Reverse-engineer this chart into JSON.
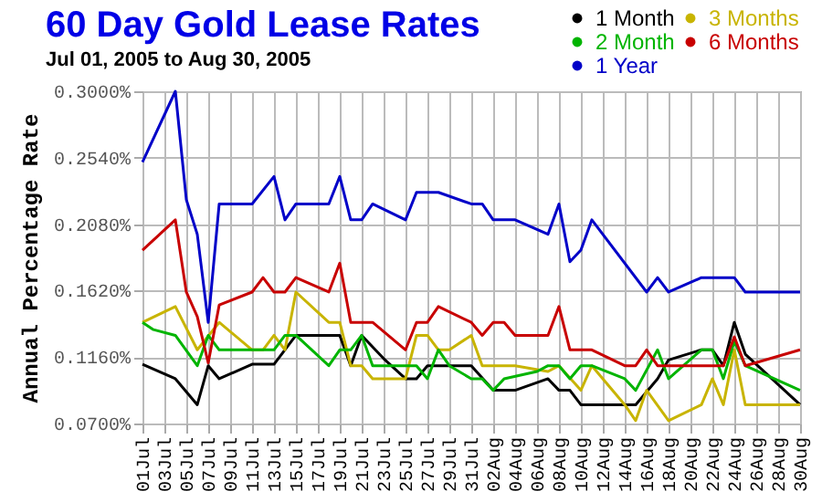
{
  "chart_data": {
    "type": "line",
    "title": "60 Day Gold Lease Rates",
    "subtitle": "Jul 01, 2005 to Aug 30, 2005",
    "ylabel": "Annual Percentage Rate",
    "xlim": [
      "--07-01",
      "--08-30"
    ],
    "xticks": [
      {
        "value": "--07-01",
        "label": "01Jul"
      },
      {
        "value": "--07-03",
        "label": "03Jul"
      },
      {
        "value": "--07-05",
        "label": "05Jul"
      },
      {
        "value": "--07-07",
        "label": "07Jul"
      },
      {
        "value": "--07-09",
        "label": "09Jul"
      },
      {
        "value": "--07-11",
        "label": "11Jul"
      },
      {
        "value": "--07-13",
        "label": "13Jul"
      },
      {
        "value": "--07-15",
        "label": "15Jul"
      },
      {
        "value": "--07-17",
        "label": "17Jul"
      },
      {
        "value": "--07-19",
        "label": "19Jul"
      },
      {
        "value": "--07-21",
        "label": "21Jul"
      },
      {
        "value": "--07-23",
        "label": "23Jul"
      },
      {
        "value": "--07-25",
        "label": "25Jul"
      },
      {
        "value": "--07-27",
        "label": "27Jul"
      },
      {
        "value": "--07-29",
        "label": "29Jul"
      },
      {
        "value": "--07-31",
        "label": "31Jul"
      },
      {
        "value": "--08-02",
        "label": "02Aug"
      },
      {
        "value": "--08-04",
        "label": "04Aug"
      },
      {
        "value": "--08-06",
        "label": "06Aug"
      },
      {
        "value": "--08-08",
        "label": "08Aug"
      },
      {
        "value": "--08-10",
        "label": "10Aug"
      },
      {
        "value": "--08-12",
        "label": "12Aug"
      },
      {
        "value": "--08-14",
        "label": "14Aug"
      },
      {
        "value": "--08-16",
        "label": "16Aug"
      },
      {
        "value": "--08-18",
        "label": "18Aug"
      },
      {
        "value": "--08-20",
        "label": "20Aug"
      },
      {
        "value": "--08-22",
        "label": "22Aug"
      },
      {
        "value": "--08-24",
        "label": "24Aug"
      },
      {
        "value": "--08-26",
        "label": "26Aug"
      },
      {
        "value": "--08-28",
        "label": "28Aug"
      },
      {
        "value": "--08-30",
        "label": "30Aug"
      }
    ],
    "ylim": [
      0.07,
      0.3
    ],
    "yticks": [
      {
        "value": 0.07,
        "label": "0.0700%"
      },
      {
        "value": 0.116,
        "label": "0.1160%"
      },
      {
        "value": 0.162,
        "label": "0.1620%"
      },
      {
        "value": 0.208,
        "label": "0.2080%"
      },
      {
        "value": 0.254,
        "label": "0.2540%"
      },
      {
        "value": 0.3,
        "label": "0.3000%"
      }
    ],
    "grid": true,
    "legend": "top right",
    "series": [
      {
        "name": "1 Month",
        "color": "#000000",
        "x": [
          "--07-01",
          "--07-04",
          "--07-06",
          "--07-07",
          "--07-08",
          "--07-11",
          "--07-13",
          "--07-15",
          "--07-19",
          "--07-20",
          "--07-21",
          "--07-23",
          "--07-25",
          "--07-26",
          "--07-27",
          "--07-31",
          "--08-02",
          "--08-04",
          "--08-07",
          "--08-08",
          "--08-09",
          "--08-10",
          "--08-15",
          "--08-17",
          "--08-18",
          "--08-21",
          "--08-22",
          "--08-23",
          "--08-24",
          "--08-25",
          "--08-30"
        ],
        "values": [
          0.111,
          0.101,
          0.083,
          0.11,
          0.101,
          0.111,
          0.111,
          0.131,
          0.131,
          0.11,
          0.131,
          0.115,
          0.101,
          0.101,
          0.11,
          0.11,
          0.093,
          0.093,
          0.101,
          0.093,
          0.093,
          0.083,
          0.083,
          0.101,
          0.114,
          0.121,
          0.121,
          0.11,
          0.14,
          0.118,
          0.083
        ]
      },
      {
        "name": "3 Months",
        "color": "#c8b400",
        "x": [
          "--07-01",
          "--07-04",
          "--07-06",
          "--07-08",
          "--07-11",
          "--07-12",
          "--07-13",
          "--07-14",
          "--07-15",
          "--07-18",
          "--07-19",
          "--07-20",
          "--07-21",
          "--07-22",
          "--07-25",
          "--07-26",
          "--07-27",
          "--07-28",
          "--07-29",
          "--07-31",
          "--08-01",
          "--08-04",
          "--08-07",
          "--08-08",
          "--08-10",
          "--08-11",
          "--08-14",
          "--08-15",
          "--08-16",
          "--08-18",
          "--08-21",
          "--08-22",
          "--08-23",
          "--08-24",
          "--08-25",
          "--08-30"
        ],
        "values": [
          0.14,
          0.151,
          0.121,
          0.14,
          0.121,
          0.121,
          0.131,
          0.121,
          0.161,
          0.14,
          0.14,
          0.11,
          0.11,
          0.101,
          0.101,
          0.131,
          0.131,
          0.121,
          0.121,
          0.131,
          0.11,
          0.11,
          0.106,
          0.11,
          0.093,
          0.11,
          0.083,
          0.072,
          0.093,
          0.072,
          0.083,
          0.101,
          0.083,
          0.121,
          0.083,
          0.083
        ]
      },
      {
        "name": "2 Month",
        "color": "#00b400",
        "x": [
          "--07-01",
          "--07-02",
          "--07-04",
          "--07-06",
          "--07-07",
          "--07-08",
          "--07-13",
          "--07-14",
          "--07-15",
          "--07-18",
          "--07-19",
          "--07-20",
          "--07-21",
          "--07-22",
          "--07-26",
          "--07-27",
          "--07-28",
          "--07-29",
          "--07-31",
          "--08-01",
          "--08-02",
          "--08-03",
          "--08-06",
          "--08-07",
          "--08-08",
          "--08-09",
          "--08-10",
          "--08-11",
          "--08-14",
          "--08-15",
          "--08-17",
          "--08-18",
          "--08-21",
          "--08-22",
          "--08-23",
          "--08-24",
          "--08-25",
          "--08-30"
        ],
        "values": [
          0.14,
          0.135,
          0.131,
          0.11,
          0.131,
          0.121,
          0.121,
          0.131,
          0.131,
          0.11,
          0.121,
          0.121,
          0.131,
          0.11,
          0.11,
          0.101,
          0.121,
          0.11,
          0.101,
          0.101,
          0.093,
          0.101,
          0.106,
          0.11,
          0.11,
          0.101,
          0.11,
          0.11,
          0.101,
          0.093,
          0.121,
          0.101,
          0.121,
          0.121,
          0.101,
          0.127,
          0.11,
          0.093
        ]
      },
      {
        "name": "6 Months",
        "color": "#c80000",
        "x": [
          "--07-01",
          "--07-04",
          "--07-05",
          "--07-06",
          "--07-07",
          "--07-08",
          "--07-11",
          "--07-12",
          "--07-13",
          "--07-14",
          "--07-15",
          "--07-18",
          "--07-19",
          "--07-20",
          "--07-22",
          "--07-25",
          "--07-26",
          "--07-27",
          "--07-28",
          "--07-31",
          "--08-01",
          "--08-02",
          "--08-03",
          "--08-04",
          "--08-07",
          "--08-08",
          "--08-09",
          "--08-11",
          "--08-14",
          "--08-15",
          "--08-16",
          "--08-17",
          "--08-23",
          "--08-24",
          "--08-25",
          "--08-30"
        ],
        "values": [
          0.19,
          0.211,
          0.161,
          0.144,
          0.112,
          0.152,
          0.161,
          0.171,
          0.161,
          0.161,
          0.171,
          0.161,
          0.181,
          0.14,
          0.14,
          0.121,
          0.14,
          0.14,
          0.151,
          0.14,
          0.131,
          0.14,
          0.14,
          0.131,
          0.131,
          0.151,
          0.121,
          0.121,
          0.11,
          0.11,
          0.121,
          0.11,
          0.11,
          0.13,
          0.11,
          0.121
        ]
      },
      {
        "name": "1 Year",
        "color": "#0000c8",
        "x": [
          "--07-01",
          "--07-04",
          "--07-05",
          "--07-06",
          "--07-07",
          "--07-08",
          "--07-11",
          "--07-13",
          "--07-14",
          "--07-15",
          "--07-18",
          "--07-19",
          "--07-20",
          "--07-21",
          "--07-22",
          "--07-25",
          "--07-26",
          "--07-28",
          "--07-31",
          "--08-01",
          "--08-02",
          "--08-04",
          "--08-07",
          "--08-08",
          "--08-09",
          "--08-10",
          "--08-11",
          "--08-16",
          "--08-17",
          "--08-18",
          "--08-21",
          "--08-24",
          "--08-25",
          "--08-30"
        ],
        "values": [
          0.251,
          0.3,
          0.225,
          0.201,
          0.14,
          0.222,
          0.222,
          0.241,
          0.211,
          0.222,
          0.222,
          0.241,
          0.211,
          0.211,
          0.222,
          0.211,
          0.23,
          0.23,
          0.222,
          0.222,
          0.211,
          0.211,
          0.201,
          0.222,
          0.182,
          0.19,
          0.211,
          0.161,
          0.171,
          0.161,
          0.171,
          0.171,
          0.161,
          0.161
        ]
      }
    ]
  }
}
